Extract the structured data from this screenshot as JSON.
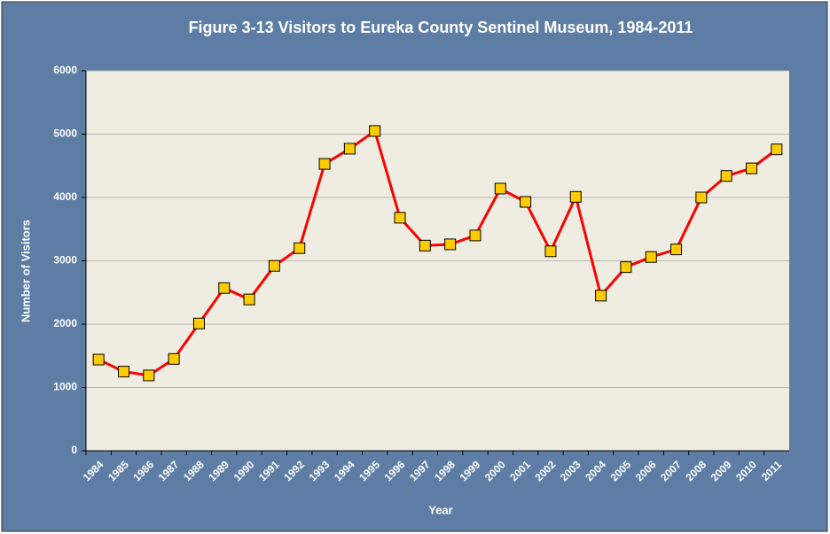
{
  "chart_data": {
    "type": "line",
    "title": "Figure 3-13 Visitors to Eureka County Sentinel Museum, 1984-2011",
    "x_label": "Year",
    "y_label": "Number of Visitors",
    "categories": [
      "1984",
      "1985",
      "1986",
      "1987",
      "1988",
      "1989",
      "1990",
      "1991",
      "1992",
      "1993",
      "1994",
      "1995",
      "1996",
      "1997",
      "1998",
      "1999",
      "2000",
      "2001",
      "2002",
      "2003",
      "2004",
      "2005",
      "2006",
      "2007",
      "2008",
      "2009",
      "2010",
      "2011"
    ],
    "series": [
      {
        "name": "Visitors",
        "color": "#ff0000",
        "marker_color": "#ffcc00",
        "values": [
          1440,
          1250,
          1190,
          1450,
          2010,
          2570,
          2390,
          2920,
          3200,
          4530,
          4770,
          5050,
          3680,
          3240,
          3260,
          3400,
          4140,
          3930,
          3150,
          4010,
          2450,
          2900,
          3060,
          3180,
          4000,
          4340,
          4460,
          4760
        ]
      }
    ],
    "ylim": [
      0,
      6000
    ],
    "yticks": [
      0,
      1000,
      2000,
      3000,
      4000,
      5000,
      6000
    ],
    "grid": true
  }
}
